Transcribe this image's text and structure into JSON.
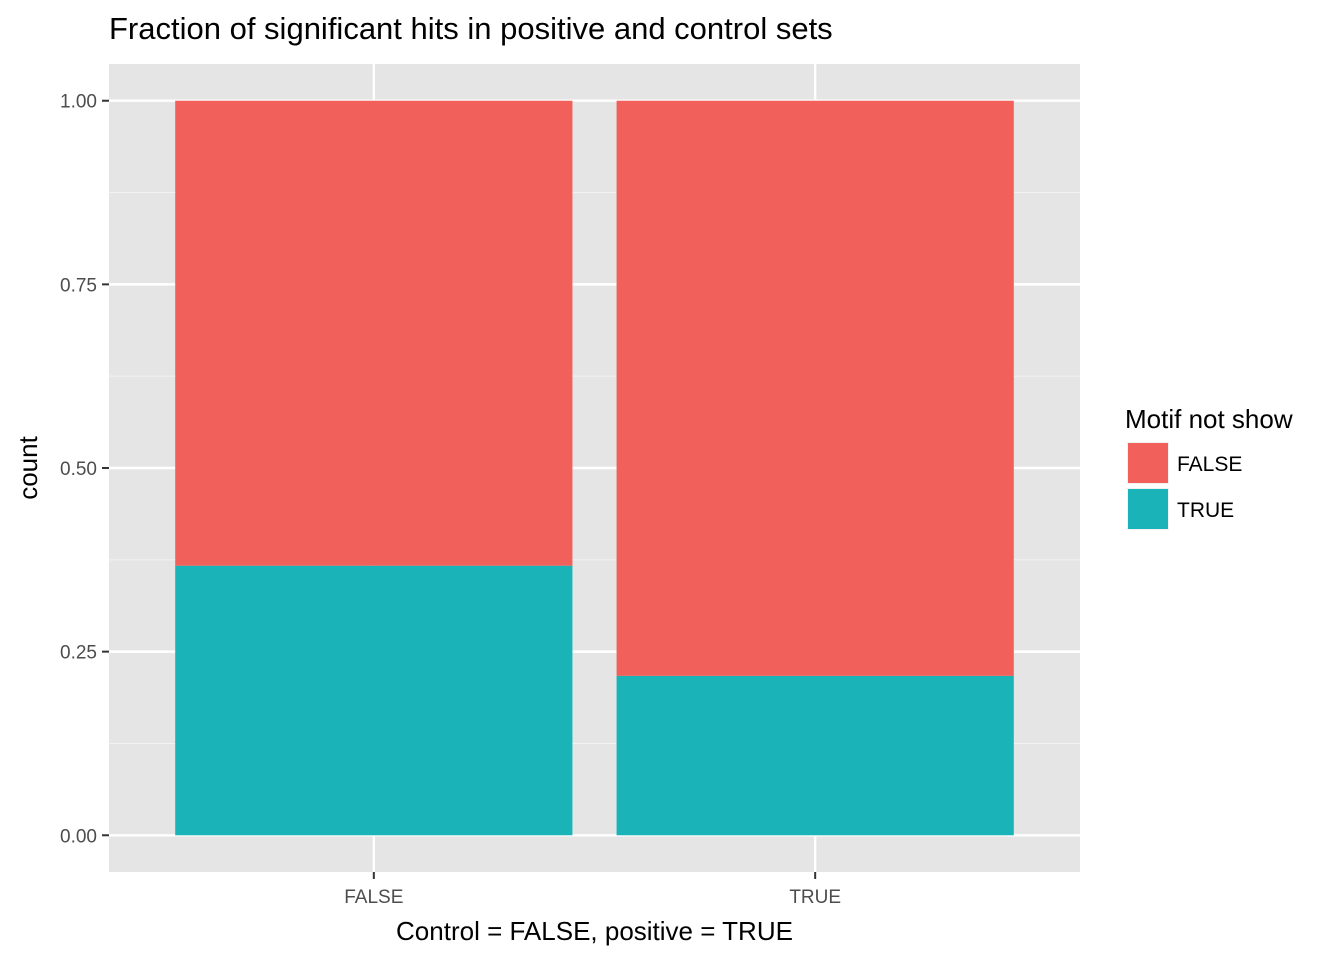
{
  "chart_data": {
    "type": "bar",
    "stacked": true,
    "title": "Fraction of significant hits in positive and control sets",
    "xlabel": "Control = FALSE, positive = TRUE",
    "ylabel": "count",
    "categories": [
      "FALSE",
      "TRUE"
    ],
    "series": [
      {
        "name": "TRUE",
        "values": [
          0.367,
          0.217
        ],
        "color": "#1AB4B8"
      },
      {
        "name": "FALSE",
        "values": [
          0.633,
          0.783
        ],
        "color": "#F2605B"
      }
    ],
    "yticks": [
      0,
      0.25,
      0.5,
      0.75,
      1
    ],
    "ytick_labels": [
      "0.00",
      "0.25",
      "0.50",
      "0.75",
      "1.00"
    ],
    "ylim": [
      -0.05,
      1.05
    ],
    "grid": true,
    "panel_background": "#E5E5E5",
    "legend": {
      "title": "Motif not show",
      "position": "right",
      "items": [
        {
          "label": "FALSE",
          "color": "#F2605B"
        },
        {
          "label": "TRUE",
          "color": "#1AB4B8"
        }
      ]
    }
  }
}
